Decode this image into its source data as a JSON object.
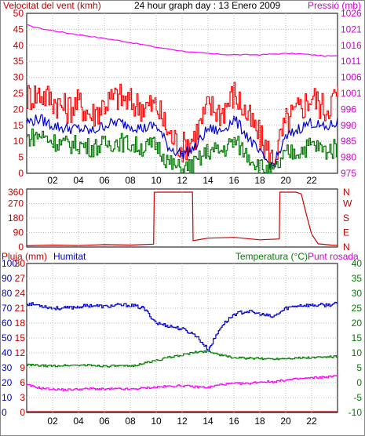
{
  "chart_data": [
    {
      "type": "line",
      "id": "wind-pressure",
      "title": "24 hour graph day : 13 Enero 2009",
      "left_axis_label": "Velocitat del vent (kmh)",
      "right_axis_label": "Pressió (mb)",
      "x_ticks": [
        "02",
        "04",
        "06",
        "08",
        "10",
        "12",
        "14",
        "16",
        "18",
        "20",
        "22"
      ],
      "left_ticks": [
        50,
        45,
        40,
        35,
        30,
        25,
        20,
        15,
        10,
        5,
        0
      ],
      "right_ticks": [
        1026,
        1021,
        1016,
        1011,
        1006,
        1001,
        996,
        990,
        985,
        980,
        975
      ],
      "ylim_left": [
        0,
        50
      ],
      "ylim_right": [
        975,
        1026
      ],
      "x_hours": [
        0,
        1,
        2,
        3,
        4,
        5,
        6,
        7,
        8,
        9,
        10,
        11,
        12,
        13,
        14,
        15,
        16,
        17,
        18,
        19,
        20,
        21,
        22,
        23,
        24
      ],
      "series": [
        {
          "key": "pressure",
          "axis": "right",
          "color": "#ff00ff",
          "values": [
            1022.3,
            1021.2,
            1020.5,
            1019.8,
            1019.2,
            1018.6,
            1018.0,
            1017.4,
            1016.7,
            1016.0,
            1015.2,
            1014.6,
            1014.0,
            1013.5,
            1013.2,
            1012.9,
            1012.8,
            1012.8,
            1012.8,
            1013.0,
            1013.2,
            1013.1,
            1012.8,
            1012.4,
            1012.4
          ]
        },
        {
          "key": "gust",
          "axis": "left",
          "color": "#ff0000",
          "values": [
            24,
            25,
            23,
            20,
            22,
            18,
            22,
            24,
            22,
            21,
            21,
            12,
            8,
            12,
            21,
            19,
            25,
            18,
            11,
            4,
            16,
            20,
            24,
            20,
            25
          ]
        },
        {
          "key": "avg",
          "axis": "left",
          "color": "#0000cc",
          "values": [
            16,
            17,
            15,
            14,
            14,
            13,
            15,
            16,
            15,
            14,
            15,
            8,
            6,
            8,
            14,
            13,
            17,
            12,
            6,
            2,
            11,
            14,
            16,
            14,
            16
          ]
        },
        {
          "key": "min",
          "axis": "left",
          "color": "#007700",
          "values": [
            11,
            12,
            10,
            9,
            9,
            8,
            9,
            10,
            9,
            8,
            9,
            3,
            1,
            3,
            7,
            7,
            10,
            6,
            2,
            0,
            6,
            7,
            9,
            7,
            8
          ]
        }
      ]
    },
    {
      "type": "line",
      "id": "wind-direction",
      "left_ticks": [
        360,
        270,
        180,
        90,
        0
      ],
      "right_ticks": [
        "N",
        "W",
        "S",
        "E",
        "N"
      ],
      "ylim": [
        0,
        360
      ],
      "series": [
        {
          "key": "direction",
          "color": "#cc0000",
          "points": [
            [
              0,
              8
            ],
            [
              2,
              12
            ],
            [
              4,
              9
            ],
            [
              6,
              15
            ],
            [
              8,
              12
            ],
            [
              9.8,
              18
            ],
            [
              9.85,
              340
            ],
            [
              10.5,
              345
            ],
            [
              11.2,
              360
            ],
            [
              12.8,
              355
            ],
            [
              12.85,
              40
            ],
            [
              14,
              55
            ],
            [
              16,
              60
            ],
            [
              18,
              45
            ],
            [
              19.5,
              50
            ],
            [
              19.55,
              355
            ],
            [
              20.8,
              350
            ],
            [
              21.2,
              330
            ],
            [
              21.6,
              200
            ],
            [
              22.0,
              80
            ],
            [
              22.5,
              20
            ],
            [
              23.5,
              12
            ],
            [
              24,
              10
            ]
          ]
        }
      ]
    },
    {
      "type": "line",
      "id": "rain-humidity-temp",
      "left_axis_label": "Pluja (mm)",
      "humidity_label": "Humitat",
      "temperature_label": "Temperatura (°C)",
      "dewpoint_label": "Punt rosada",
      "left_ticks_outer": [
        100,
        90,
        80,
        70,
        60,
        50,
        40,
        30,
        20,
        10,
        0
      ],
      "left_ticks_inner": [
        30,
        27,
        24,
        21,
        18,
        15,
        12,
        9,
        6,
        3,
        0
      ],
      "right_ticks": [
        40,
        35,
        30,
        25,
        20,
        15,
        10,
        5,
        0,
        -5,
        -10
      ],
      "ylim_humidity": [
        0,
        100
      ],
      "ylim_temperature": [
        -10,
        40
      ],
      "x_hours": [
        0,
        1,
        2,
        3,
        4,
        5,
        6,
        7,
        8,
        9,
        10,
        11,
        12,
        13,
        14,
        15,
        16,
        17,
        18,
        19,
        20,
        21,
        22,
        23,
        24
      ],
      "series": [
        {
          "key": "humidity",
          "color": "#0000cc",
          "values": [
            73,
            72,
            70,
            70,
            71,
            72,
            71,
            72,
            72,
            70,
            60,
            58,
            56,
            52,
            42,
            58,
            66,
            68,
            66,
            64,
            70,
            72,
            72,
            72,
            73
          ]
        },
        {
          "key": "temperature",
          "color": "#008000",
          "values": [
            6.0,
            5.7,
            5.6,
            5.8,
            5.9,
            5.8,
            5.6,
            5.6,
            5.5,
            6.5,
            7.5,
            8.5,
            9.3,
            10.2,
            10.6,
            9.2,
            8.4,
            8.2,
            8.1,
            8.0,
            8.2,
            8.3,
            8.4,
            8.6,
            8.8
          ]
        },
        {
          "key": "dewpoint",
          "color": "#ff00ff",
          "values": [
            -0.8,
            -1.8,
            -2.2,
            -2.4,
            -2.2,
            -2.0,
            -2.2,
            -2.1,
            -2.2,
            -1.8,
            -1.5,
            -1.2,
            -1.0,
            -1.4,
            -1.6,
            -0.6,
            -0.3,
            -0.3,
            0.3,
            0.3,
            0.9,
            1.3,
            1.6,
            1.9,
            2.2
          ]
        },
        {
          "key": "rain",
          "color": "#cc0000",
          "values": [
            0,
            0,
            0,
            0,
            0,
            0,
            0,
            0,
            0,
            0,
            0,
            0,
            0,
            0,
            0,
            0,
            0,
            0,
            0,
            0,
            0,
            0,
            0,
            0,
            0
          ]
        }
      ]
    }
  ]
}
